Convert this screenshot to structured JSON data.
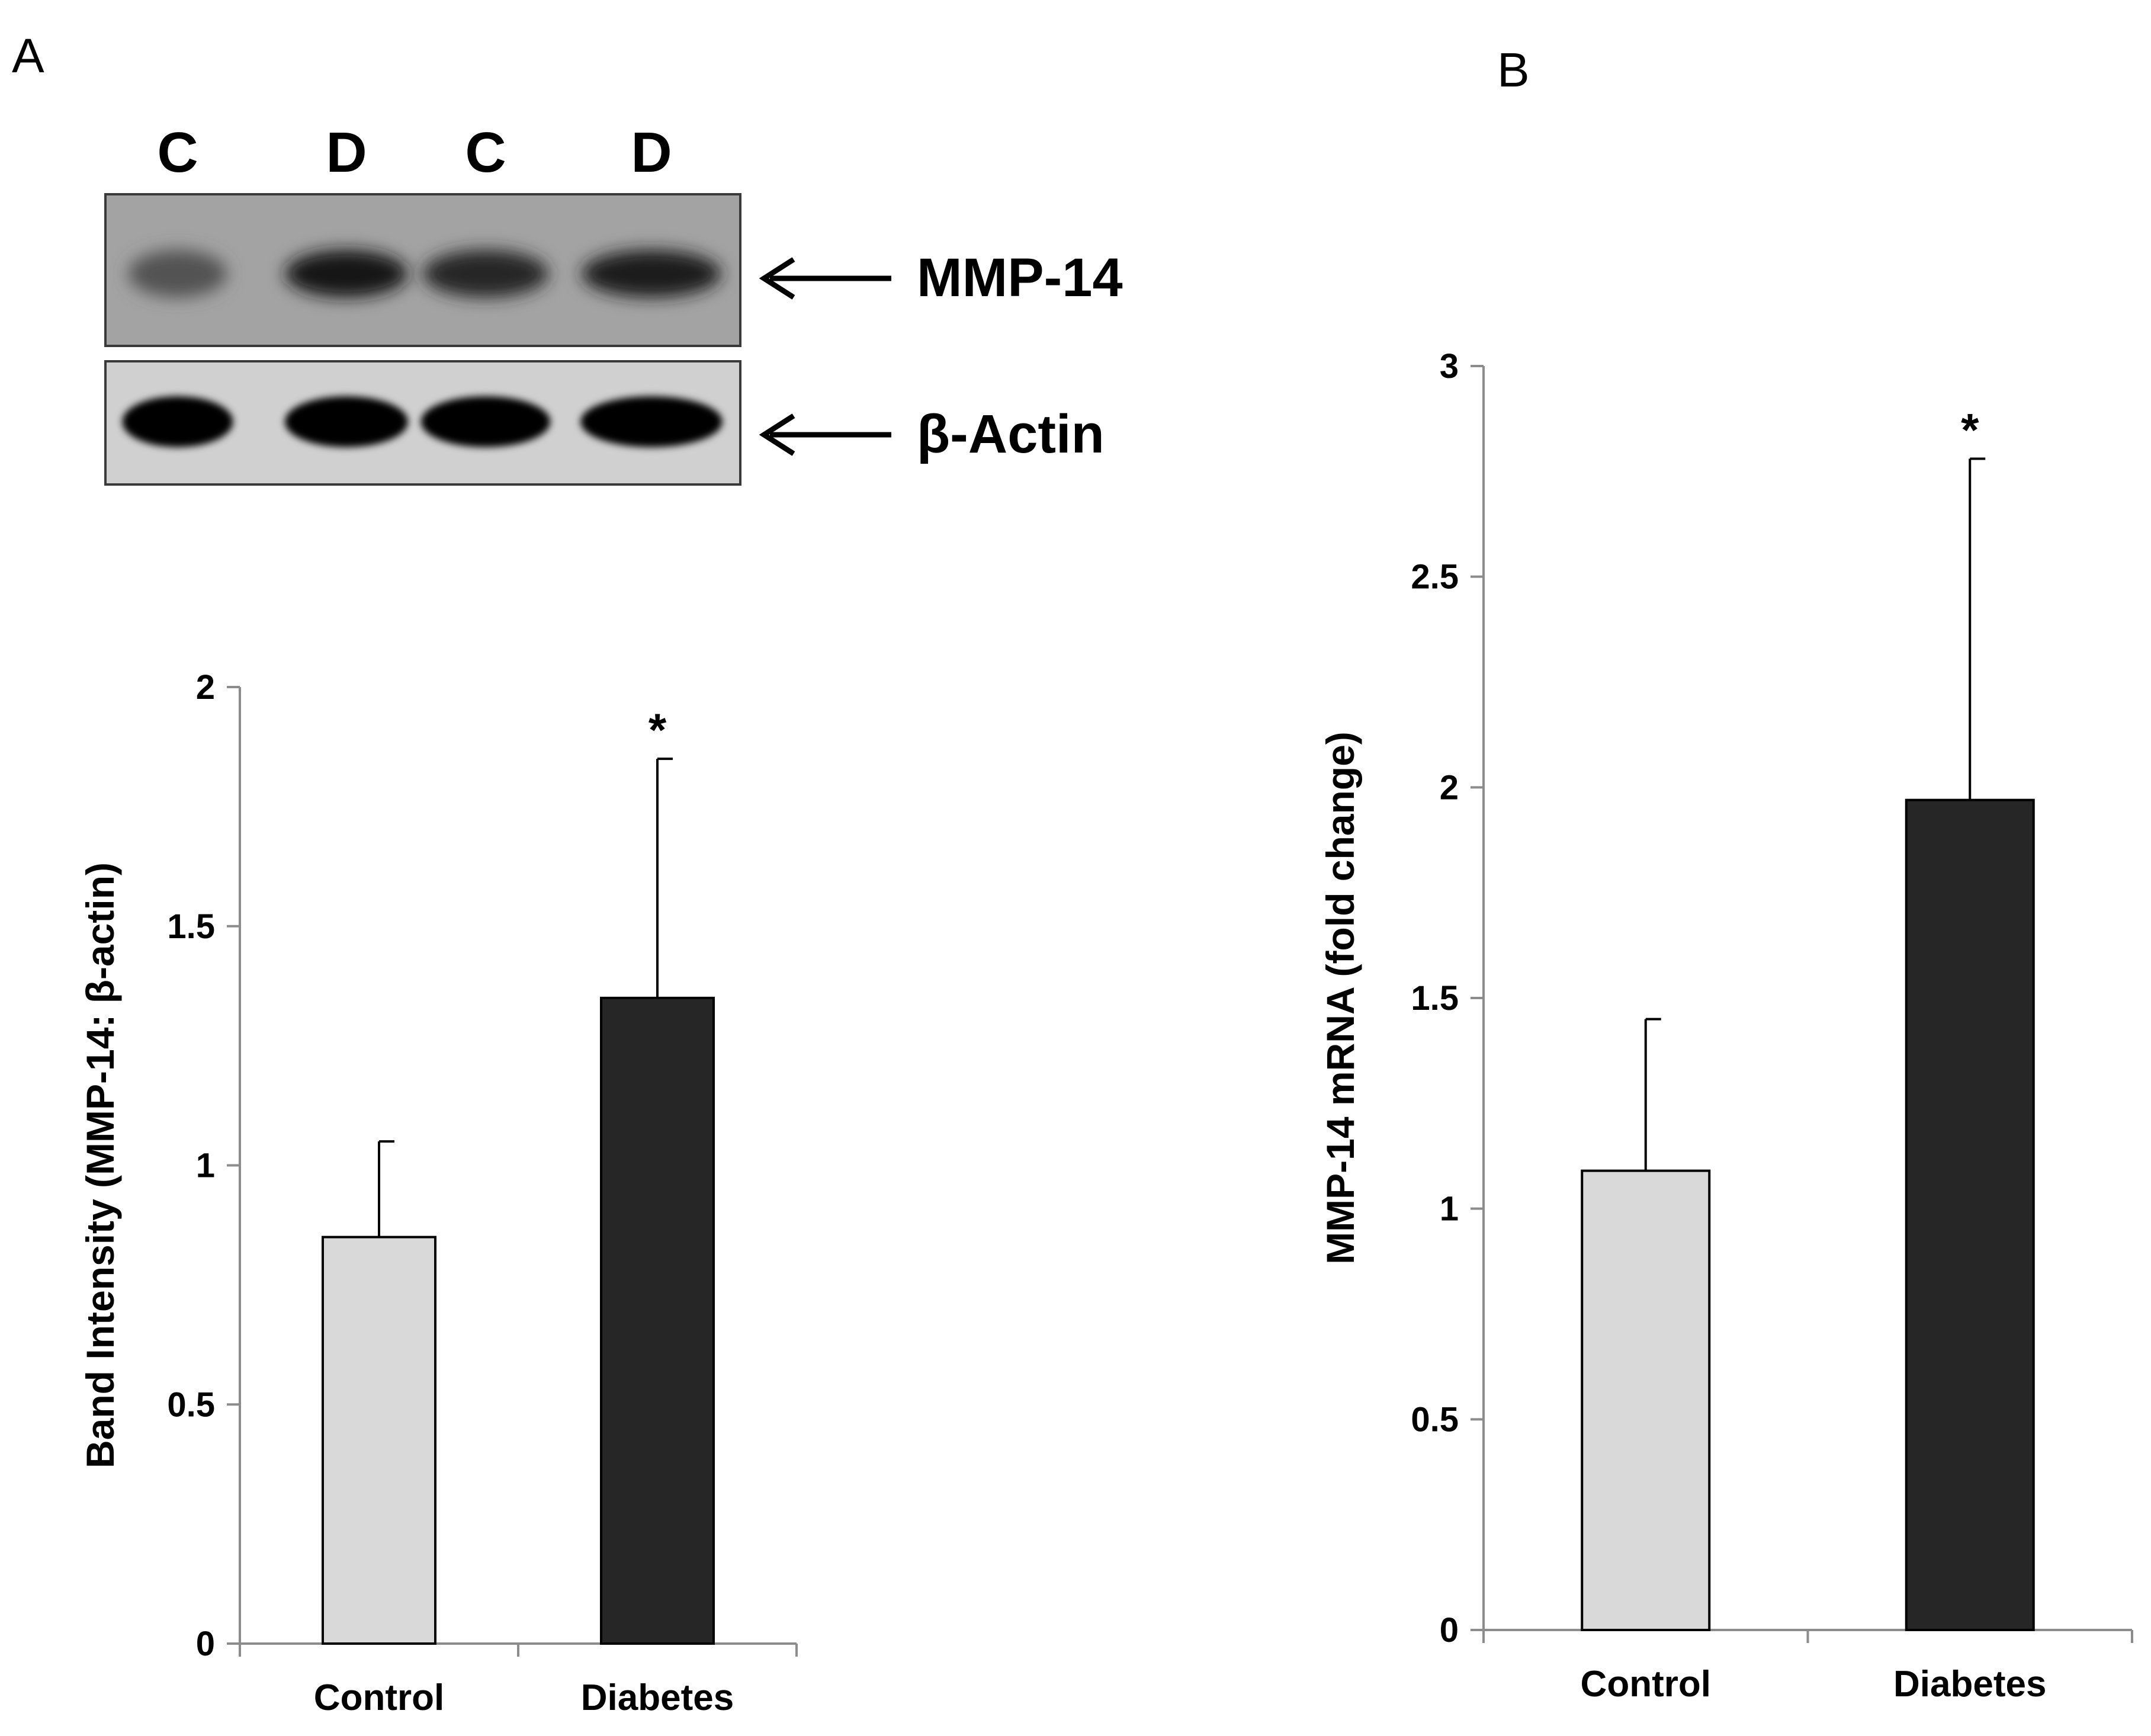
{
  "panel_labels": {
    "a": "A",
    "b": "B"
  },
  "blot": {
    "lanes": [
      "C",
      "D",
      "C",
      "D"
    ],
    "rows": [
      {
        "label": "MMP-14",
        "band_intensity": [
          0.45,
          0.85,
          0.75,
          0.8
        ]
      },
      {
        "label": "β-Actin",
        "band_intensity": [
          1,
          1,
          1,
          1
        ]
      }
    ]
  },
  "colors": {
    "control": "#d9d9d9",
    "diabetes": "#262626",
    "axis": "#8c8c8c"
  },
  "chart_data": [
    {
      "type": "bar",
      "panel": "A",
      "categories": [
        "Control",
        "Diabetes"
      ],
      "values": [
        0.85,
        1.35
      ],
      "errors": [
        0.2,
        0.5
      ],
      "significance": [
        "",
        "*"
      ],
      "ylabel": "Band Intensity (MMP-14: β-actin)",
      "ylim": [
        0,
        2
      ],
      "yticks": [
        "0",
        "0.5",
        "1",
        "1.5",
        "2"
      ]
    },
    {
      "type": "bar",
      "panel": "B",
      "categories": [
        "Control",
        "Diabetes"
      ],
      "values": [
        1.09,
        1.97
      ],
      "errors": [
        0.36,
        0.81
      ],
      "significance": [
        "",
        "*"
      ],
      "ylabel": "MMP-14 mRNA (fold change)",
      "ylim": [
        0,
        3
      ],
      "yticks": [
        "0",
        "0.5",
        "1",
        "1.5",
        "2",
        "2.5",
        "3"
      ]
    }
  ]
}
